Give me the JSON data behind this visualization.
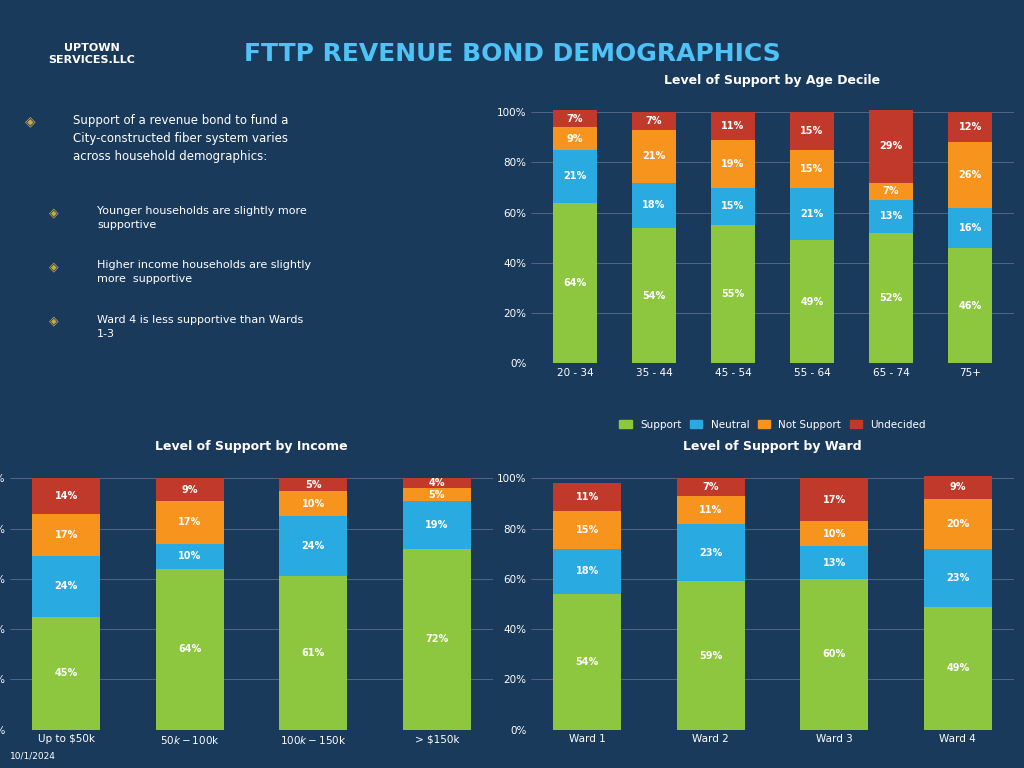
{
  "background_color": "#1a3a5c",
  "title_main": "FTTP REVENUE BOND DEMOGRAPHICS",
  "title_color": "#4fc3f7",
  "colors": {
    "support": "#8dc63f",
    "neutral": "#29abe2",
    "not_support": "#f7941d",
    "undecided": "#c1392b"
  },
  "legend_labels": [
    "Support",
    "Neutral",
    "Not Support",
    "Undecided"
  ],
  "age_decile": {
    "title": "Level of Support by Age Decile",
    "categories": [
      "20 - 34",
      "35 - 44",
      "45 - 54",
      "55 - 64",
      "65 - 74",
      "75+"
    ],
    "support": [
      64,
      54,
      55,
      49,
      52,
      46
    ],
    "neutral": [
      21,
      18,
      15,
      21,
      13,
      16
    ],
    "not_support": [
      9,
      21,
      19,
      15,
      7,
      26
    ],
    "undecided": [
      7,
      7,
      11,
      15,
      29,
      12
    ]
  },
  "income": {
    "title": "Level of Support by Income",
    "categories": [
      "Up to $50k",
      "$50k - $100k",
      "$100k - $150k",
      "> $150k"
    ],
    "support": [
      45,
      64,
      61,
      72
    ],
    "neutral": [
      24,
      10,
      24,
      19
    ],
    "not_support": [
      17,
      17,
      10,
      5
    ],
    "undecided": [
      14,
      9,
      5,
      4
    ]
  },
  "ward": {
    "title": "Level of Support by Ward",
    "categories": [
      "Ward 1",
      "Ward 2",
      "Ward 3",
      "Ward 4"
    ],
    "support": [
      54,
      59,
      60,
      49
    ],
    "neutral": [
      18,
      23,
      13,
      23
    ],
    "not_support": [
      15,
      11,
      10,
      20
    ],
    "undecided": [
      11,
      7,
      17,
      9
    ]
  },
  "bullet_text": [
    "Support of a revenue bond to fund a\nCity-constructed fiber system varies\nacross household demographics:",
    "Younger households are slightly more\nsupportive",
    "Higher income households are slightly\nmore  supportive",
    "Ward 4 is less supportive than Wards\n1-3"
  ],
  "date_text": "10/1/2024"
}
